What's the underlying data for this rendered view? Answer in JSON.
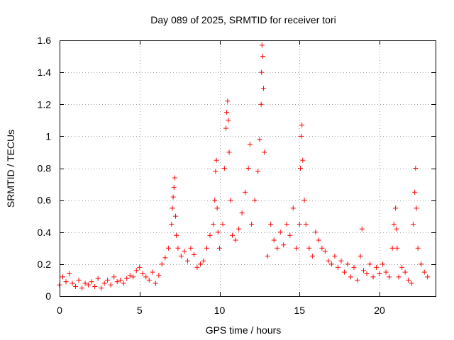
{
  "chart_data": {
    "type": "scatter",
    "title": "Day 089 of 2025, SRMTID for receiver tori",
    "xlabel": "GPS time / hours",
    "ylabel": "SRMTID / TECUs",
    "xlim": [
      0,
      23.5
    ],
    "ylim": [
      0,
      1.6
    ],
    "xticks": [
      0,
      5,
      10,
      15,
      20
    ],
    "xtick_labels": [
      "0",
      "5",
      "10",
      "15",
      "20"
    ],
    "yticks": [
      0,
      0.2,
      0.4,
      0.6,
      0.8,
      1,
      1.2,
      1.4,
      1.6
    ],
    "ytick_labels": [
      "0",
      "0.2",
      "0.4",
      "0.6",
      "0.8",
      "1",
      "1.2",
      "1.4",
      "1.6"
    ],
    "grid": true,
    "marker": "+",
    "color": "#ff0000",
    "series": [
      {
        "name": "SRMTID",
        "x": [
          0.0,
          0.2,
          0.4,
          0.6,
          0.8,
          1.0,
          1.2,
          1.4,
          1.6,
          1.8,
          2.0,
          2.2,
          2.4,
          2.6,
          2.8,
          3.0,
          3.2,
          3.4,
          3.6,
          3.8,
          4.0,
          4.2,
          4.4,
          4.6,
          4.8,
          5.0,
          5.2,
          5.4,
          5.6,
          5.8,
          6.0,
          6.2,
          6.4,
          6.6,
          6.8,
          7.0,
          7.05,
          7.1,
          7.15,
          7.2,
          7.25,
          7.3,
          7.4,
          7.6,
          7.8,
          8.0,
          8.2,
          8.4,
          8.6,
          8.8,
          9.0,
          9.2,
          9.4,
          9.6,
          9.7,
          9.75,
          9.8,
          9.85,
          9.9,
          10.0,
          10.2,
          10.3,
          10.4,
          10.45,
          10.5,
          10.55,
          10.6,
          10.7,
          10.8,
          11.0,
          11.2,
          11.4,
          11.6,
          11.8,
          11.9,
          12.0,
          12.2,
          12.4,
          12.5,
          12.6,
          12.62,
          12.65,
          12.7,
          12.75,
          12.8,
          13.0,
          13.2,
          13.4,
          13.6,
          13.8,
          14.0,
          14.2,
          14.4,
          14.6,
          14.8,
          15.0,
          15.05,
          15.1,
          15.15,
          15.2,
          15.3,
          15.4,
          15.6,
          15.8,
          16.0,
          16.2,
          16.4,
          16.6,
          16.8,
          17.0,
          17.2,
          17.4,
          17.6,
          17.8,
          18.0,
          18.2,
          18.4,
          18.6,
          18.8,
          18.9,
          19.0,
          19.2,
          19.4,
          19.6,
          19.8,
          20.0,
          20.2,
          20.4,
          20.6,
          20.8,
          20.9,
          21.0,
          21.05,
          21.1,
          21.2,
          21.4,
          21.6,
          21.8,
          22.0,
          22.1,
          22.2,
          22.25,
          22.3,
          22.4,
          22.6,
          22.8,
          23.0
        ],
        "y": [
          0.07,
          0.12,
          0.09,
          0.14,
          0.08,
          0.06,
          0.1,
          0.05,
          0.08,
          0.07,
          0.09,
          0.06,
          0.11,
          0.05,
          0.08,
          0.1,
          0.07,
          0.12,
          0.09,
          0.1,
          0.08,
          0.11,
          0.13,
          0.12,
          0.16,
          0.18,
          0.14,
          0.12,
          0.1,
          0.15,
          0.08,
          0.13,
          0.2,
          0.24,
          0.3,
          0.45,
          0.55,
          0.62,
          0.68,
          0.74,
          0.5,
          0.38,
          0.3,
          0.25,
          0.28,
          0.22,
          0.3,
          0.26,
          0.18,
          0.2,
          0.22,
          0.3,
          0.38,
          0.45,
          0.6,
          0.78,
          0.85,
          0.55,
          0.4,
          0.3,
          0.45,
          0.8,
          1.05,
          1.15,
          1.22,
          1.1,
          0.9,
          0.6,
          0.38,
          0.35,
          0.42,
          0.52,
          0.65,
          0.8,
          0.95,
          0.45,
          0.6,
          0.78,
          0.98,
          1.2,
          1.4,
          1.57,
          1.5,
          1.3,
          0.9,
          0.25,
          0.45,
          0.35,
          0.3,
          0.4,
          0.32,
          0.45,
          0.38,
          0.55,
          0.3,
          0.45,
          0.8,
          1.0,
          1.07,
          0.85,
          0.6,
          0.45,
          0.3,
          0.25,
          0.4,
          0.35,
          0.3,
          0.28,
          0.22,
          0.2,
          0.25,
          0.18,
          0.22,
          0.15,
          0.2,
          0.12,
          0.18,
          0.1,
          0.25,
          0.42,
          0.16,
          0.14,
          0.2,
          0.12,
          0.18,
          0.14,
          0.2,
          0.15,
          0.12,
          0.3,
          0.45,
          0.55,
          0.42,
          0.3,
          0.12,
          0.18,
          0.15,
          0.1,
          0.08,
          0.45,
          0.65,
          0.8,
          0.55,
          0.3,
          0.2,
          0.15,
          0.12
        ]
      }
    ]
  }
}
